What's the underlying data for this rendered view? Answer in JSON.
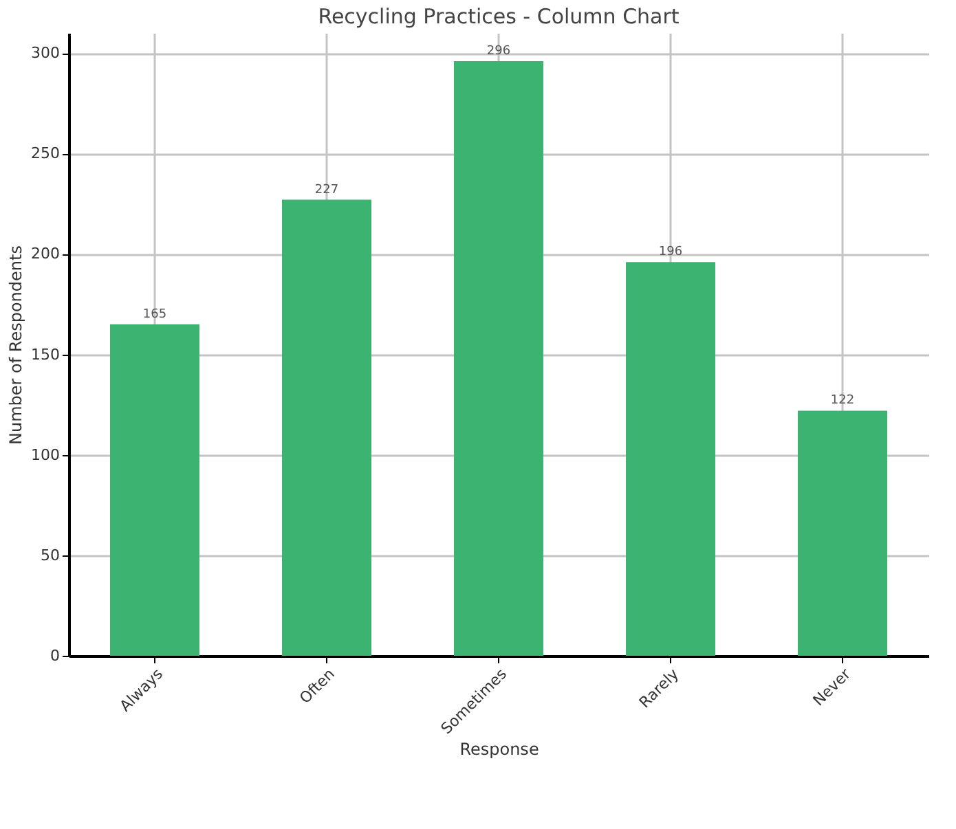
{
  "chart_data": {
    "type": "bar",
    "title": "Recycling Practices - Column Chart",
    "xlabel": "Response",
    "ylabel": "Number of Respondents",
    "categories": [
      "Always",
      "Often",
      "Sometimes",
      "Rarely",
      "Never"
    ],
    "values": [
      165,
      227,
      296,
      196,
      122
    ],
    "color": "#3cb371",
    "ylim": [
      0,
      310
    ],
    "yticks": [
      0,
      50,
      100,
      150,
      200,
      250,
      300
    ],
    "grid": true,
    "data_labels": true
  }
}
